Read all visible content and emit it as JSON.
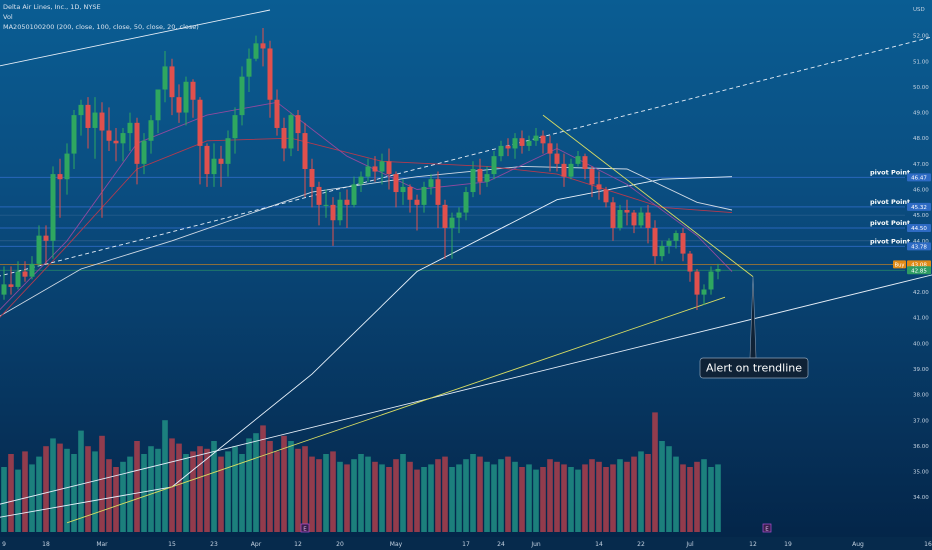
{
  "header": {
    "title": "Delta Air Lines, Inc., 1D, NYSE",
    "vol_label": "Vol",
    "ma_label": "MA20501002​00 (200, close, 100, close, 50, close, 20, close)"
  },
  "chart_data": {
    "type": "candlestick",
    "currency": "USD",
    "ylim": [
      33.5,
      53.0
    ],
    "yticks": [
      34.0,
      35.0,
      36.0,
      37.0,
      38.0,
      39.0,
      40.0,
      41.0,
      42.0,
      43.0,
      44.0,
      45.0,
      46.0,
      47.0,
      48.0,
      49.0,
      50.0,
      51.0,
      52.0
    ],
    "x_ticks": [
      {
        "label": "9",
        "idx": 1
      },
      {
        "label": "18",
        "idx": 7
      },
      {
        "label": "Mar",
        "idx": 15
      },
      {
        "label": "15",
        "idx": 25
      },
      {
        "label": "23",
        "idx": 31
      },
      {
        "label": "Apr",
        "idx": 37
      },
      {
        "label": "12",
        "idx": 43
      },
      {
        "label": "20",
        "idx": 49
      },
      {
        "label": "May",
        "idx": 57
      },
      {
        "label": "17",
        "idx": 67
      },
      {
        "label": "24",
        "idx": 72
      },
      {
        "label": "Jun",
        "idx": 77
      },
      {
        "label": "14",
        "idx": 86
      },
      {
        "label": "22",
        "idx": 92
      },
      {
        "label": "Jul",
        "idx": 99
      },
      {
        "label": "12",
        "idx": 108
      },
      {
        "label": "19",
        "idx": 113
      },
      {
        "label": "Aug",
        "idx": 123
      },
      {
        "label": "16",
        "idx": 133
      }
    ],
    "candles": [
      [
        41.2,
        41.9,
        40.9,
        40.4
      ],
      [
        41.9,
        43.0,
        42.3,
        41.7
      ],
      [
        42.3,
        43.0,
        42.2,
        41.9
      ],
      [
        42.2,
        43.2,
        42.8,
        42.1
      ],
      [
        42.8,
        43.2,
        42.6,
        42.4
      ],
      [
        42.6,
        43.4,
        43.1,
        42.5
      ],
      [
        43.1,
        44.6,
        44.2,
        43.0
      ],
      [
        44.2,
        44.6,
        44.0,
        43.1
      ],
      [
        44.0,
        46.9,
        46.6,
        43.3
      ],
      [
        46.6,
        47.2,
        46.4,
        44.9
      ],
      [
        46.4,
        47.8,
        47.4,
        45.8
      ],
      [
        47.4,
        49.1,
        48.9,
        46.8
      ],
      [
        48.9,
        49.5,
        49.3,
        48.1
      ],
      [
        49.3,
        49.6,
        48.4,
        47.6
      ],
      [
        48.4,
        49.6,
        49.0,
        47.2
      ],
      [
        49.0,
        49.4,
        48.3,
        44.9
      ],
      [
        48.3,
        49.2,
        47.9,
        47.5
      ],
      [
        47.9,
        48.4,
        47.8,
        47.1
      ],
      [
        47.8,
        48.4,
        48.2,
        47.1
      ],
      [
        48.2,
        49.0,
        48.6,
        47.5
      ],
      [
        48.6,
        48.8,
        47.0,
        46.2
      ],
      [
        47.0,
        48.2,
        47.9,
        46.6
      ],
      [
        47.9,
        48.9,
        48.7,
        47.4
      ],
      [
        48.7,
        49.9,
        49.9,
        48.2
      ],
      [
        49.9,
        51.4,
        50.8,
        49.4
      ],
      [
        50.8,
        51.1,
        49.6,
        48.9
      ],
      [
        49.6,
        50.1,
        49.0,
        48.6
      ],
      [
        49.0,
        50.4,
        50.2,
        48.5
      ],
      [
        50.2,
        50.3,
        49.5,
        48.8
      ],
      [
        49.5,
        49.6,
        47.7,
        46.2
      ],
      [
        47.7,
        47.8,
        46.6,
        46.1
      ],
      [
        46.6,
        47.8,
        47.2,
        46.1
      ],
      [
        47.2,
        47.7,
        47.0,
        46.1
      ],
      [
        47.0,
        48.3,
        48.0,
        46.5
      ],
      [
        48.0,
        49.2,
        48.9,
        47.4
      ],
      [
        48.9,
        50.8,
        50.4,
        48.5
      ],
      [
        50.4,
        51.5,
        51.1,
        49.8
      ],
      [
        51.1,
        52.0,
        51.7,
        51.0
      ],
      [
        51.7,
        52.3,
        51.5,
        50.8
      ],
      [
        51.5,
        51.8,
        49.5,
        48.8
      ],
      [
        49.5,
        49.9,
        48.4,
        48.1
      ],
      [
        48.4,
        48.8,
        47.6,
        47.1
      ],
      [
        47.6,
        49.0,
        48.9,
        47.3
      ],
      [
        48.9,
        49.1,
        48.2,
        47.5
      ],
      [
        48.2,
        48.6,
        46.8,
        45.7
      ],
      [
        46.8,
        47.2,
        46.1,
        45.3
      ],
      [
        46.1,
        46.3,
        45.4,
        44.6
      ],
      [
        45.4,
        46.0,
        45.4,
        44.9
      ],
      [
        45.4,
        45.7,
        44.8,
        43.8
      ],
      [
        44.8,
        45.9,
        45.6,
        44.6
      ],
      [
        45.6,
        46.0,
        45.4,
        44.5
      ],
      [
        45.4,
        46.5,
        46.2,
        45.3
      ],
      [
        46.2,
        46.7,
        46.5,
        45.9
      ],
      [
        46.5,
        47.2,
        46.9,
        46.3
      ],
      [
        46.9,
        47.3,
        46.7,
        46.3
      ],
      [
        46.7,
        47.4,
        47.1,
        46.2
      ],
      [
        47.1,
        47.6,
        46.6,
        46.0
      ],
      [
        46.6,
        46.7,
        45.9,
        45.3
      ],
      [
        45.9,
        46.4,
        46.1,
        45.4
      ],
      [
        46.1,
        46.2,
        45.6,
        45.1
      ],
      [
        45.6,
        45.8,
        45.4,
        44.4
      ],
      [
        45.4,
        46.3,
        46.1,
        45.1
      ],
      [
        46.1,
        46.6,
        46.4,
        45.8
      ],
      [
        46.4,
        46.7,
        45.4,
        44.5
      ],
      [
        45.4,
        45.6,
        44.5,
        43.3
      ],
      [
        44.5,
        45.1,
        44.9,
        43.3
      ],
      [
        44.9,
        45.3,
        45.1,
        44.3
      ],
      [
        45.1,
        46.1,
        45.9,
        44.8
      ],
      [
        45.9,
        47.1,
        46.8,
        45.7
      ],
      [
        46.8,
        47.2,
        46.3,
        45.8
      ],
      [
        46.3,
        46.9,
        46.6,
        46.1
      ],
      [
        46.6,
        47.5,
        47.3,
        46.4
      ],
      [
        47.3,
        47.9,
        47.7,
        47.1
      ],
      [
        47.7,
        48.0,
        47.6,
        47.3
      ],
      [
        47.6,
        48.2,
        48.0,
        47.2
      ],
      [
        48.0,
        48.3,
        47.7,
        47.4
      ],
      [
        47.7,
        48.1,
        47.9,
        47.5
      ],
      [
        47.9,
        48.4,
        48.1,
        47.7
      ],
      [
        48.1,
        48.3,
        47.8,
        47.4
      ],
      [
        47.8,
        48.1,
        47.4,
        46.7
      ],
      [
        47.4,
        47.8,
        47.0,
        46.7
      ],
      [
        47.0,
        47.4,
        46.5,
        46.1
      ],
      [
        46.5,
        47.2,
        47.0,
        46.4
      ],
      [
        47.0,
        47.5,
        47.3,
        46.9
      ],
      [
        47.3,
        47.4,
        46.8,
        46.4
      ],
      [
        46.8,
        46.9,
        46.2,
        45.7
      ],
      [
        46.2,
        46.7,
        46.0,
        45.6
      ],
      [
        46.0,
        46.1,
        45.5,
        45.3
      ],
      [
        45.5,
        45.7,
        44.5,
        44.0
      ],
      [
        44.5,
        45.4,
        45.2,
        44.4
      ],
      [
        45.2,
        45.6,
        45.1,
        44.6
      ],
      [
        45.1,
        45.2,
        44.6,
        44.3
      ],
      [
        44.6,
        45.3,
        45.1,
        44.5
      ],
      [
        45.1,
        45.4,
        44.5,
        43.9
      ],
      [
        44.5,
        44.8,
        43.4,
        43.1
      ],
      [
        43.4,
        44.0,
        43.8,
        43.2
      ],
      [
        43.8,
        44.1,
        44.0,
        43.5
      ],
      [
        44.0,
        44.4,
        44.3,
        43.7
      ],
      [
        44.3,
        44.5,
        43.5,
        43.2
      ],
      [
        43.5,
        43.6,
        42.8,
        42.4
      ],
      [
        42.8,
        42.9,
        41.9,
        41.3
      ],
      [
        41.9,
        42.3,
        42.1,
        41.5
      ],
      [
        42.1,
        43.0,
        42.8,
        41.9
      ],
      [
        42.8,
        43.1,
        42.9,
        42.5
      ]
    ],
    "volumes": [
      0.55,
      0.5,
      0.6,
      0.48,
      0.62,
      0.52,
      0.58,
      0.66,
      0.72,
      0.68,
      0.64,
      0.6,
      0.78,
      0.66,
      0.62,
      0.74,
      0.56,
      0.5,
      0.54,
      0.58,
      0.7,
      0.6,
      0.66,
      0.64,
      0.86,
      0.72,
      0.68,
      0.6,
      0.62,
      0.66,
      0.64,
      0.7,
      0.58,
      0.62,
      0.66,
      0.6,
      0.72,
      0.76,
      0.82,
      0.7,
      0.62,
      0.74,
      0.7,
      0.64,
      0.66,
      0.58,
      0.56,
      0.6,
      0.62,
      0.54,
      0.52,
      0.56,
      0.6,
      0.58,
      0.54,
      0.52,
      0.5,
      0.56,
      0.6,
      0.54,
      0.48,
      0.5,
      0.52,
      0.56,
      0.58,
      0.5,
      0.52,
      0.56,
      0.6,
      0.58,
      0.54,
      0.52,
      0.56,
      0.58,
      0.54,
      0.5,
      0.52,
      0.48,
      0.5,
      0.56,
      0.54,
      0.52,
      0.5,
      0.48,
      0.52,
      0.56,
      0.54,
      0.5,
      0.52,
      0.56,
      0.54,
      0.58,
      0.62,
      0.6,
      0.92,
      0.7,
      0.66,
      0.58,
      0.52,
      0.5,
      0.54,
      0.56,
      0.5,
      0.52
    ],
    "ma200": [
      [
        0,
        33.2
      ],
      [
        25,
        34.4
      ],
      [
        45,
        38.8
      ],
      [
        60,
        42.8
      ],
      [
        80,
        45.6
      ],
      [
        95,
        46.4
      ],
      [
        105,
        46.5
      ]
    ],
    "ma100": [
      [
        0,
        41.0
      ],
      [
        12,
        42.9
      ],
      [
        25,
        44.0
      ],
      [
        45,
        45.9
      ],
      [
        60,
        46.5
      ],
      [
        75,
        46.9
      ],
      [
        90,
        46.8
      ],
      [
        100,
        45.5
      ],
      [
        105,
        45.2
      ]
    ],
    "ma50": [
      [
        0,
        40.9
      ],
      [
        10,
        43.8
      ],
      [
        20,
        46.8
      ],
      [
        30,
        47.9
      ],
      [
        42,
        48.0
      ],
      [
        55,
        47.1
      ],
      [
        70,
        46.9
      ],
      [
        80,
        46.6
      ],
      [
        95,
        45.3
      ],
      [
        105,
        45.1
      ]
    ],
    "ma20": [
      [
        0,
        41.2
      ],
      [
        10,
        44.0
      ],
      [
        20,
        47.8
      ],
      [
        30,
        48.9
      ],
      [
        40,
        49.4
      ],
      [
        50,
        47.3
      ],
      [
        60,
        46.0
      ],
      [
        70,
        46.3
      ],
      [
        80,
        47.6
      ],
      [
        90,
        46.2
      ],
      [
        100,
        44.2
      ],
      [
        105,
        42.8
      ]
    ],
    "trendlines": [
      {
        "name": "upper-channel",
        "from": [
          0,
          50.8
        ],
        "to": [
          39,
          53.0
        ],
        "style": "solid"
      },
      {
        "name": "upper-channel-ext",
        "from": [
          0,
          42.6
        ],
        "to": [
          140,
          52.4
        ],
        "style": "dashed"
      },
      {
        "name": "support",
        "from": [
          0,
          33.7
        ],
        "to": [
          140,
          43.1
        ],
        "style": "solid"
      },
      {
        "name": "support-yellow",
        "from": [
          10,
          33.0
        ],
        "to": [
          104,
          41.8
        ],
        "style": "solid-yellow"
      },
      {
        "name": "descending",
        "from": [
          78,
          48.9
        ],
        "to": [
          108,
          42.6
        ],
        "style": "solid-yellow"
      }
    ],
    "pivots": [
      {
        "label": "pivot Point",
        "value": 46.47,
        "badge": "46.47"
      },
      {
        "label": "pivot Point",
        "value": 45.32,
        "badge": "45.32"
      },
      {
        "label": "pivot Point",
        "value": 44.5,
        "badge": "44.50"
      },
      {
        "label": "pivot Point",
        "value": 43.78,
        "badge": "43.78"
      }
    ],
    "guides": [
      {
        "value": 45.0
      },
      {
        "value": 44.0
      }
    ],
    "price_badges": [
      {
        "value": 43.08,
        "badge": "43.08",
        "tag": "Buy",
        "color": "#e08a16"
      },
      {
        "value": 42.85,
        "badge": "42.85",
        "color": "#2e9c63"
      }
    ],
    "annotation": {
      "text": "Alert on trendline",
      "target": [
        108,
        42.6
      ]
    },
    "event_markers": [
      {
        "label": "E",
        "idx": 44
      },
      {
        "label": "E",
        "idx": 110
      }
    ]
  },
  "colors": {
    "up": "#2fa760",
    "down": "#e0504d",
    "vol_up": "#1f8a82",
    "vol_down": "#a23e4c",
    "ma200": "#e8f2fb",
    "ma100": "#cfd9e4",
    "ma50": "#b43a4e",
    "ma20": "#8f4a9e",
    "pivot": "#2e6bc4",
    "yellow": "#d8dd63"
  }
}
